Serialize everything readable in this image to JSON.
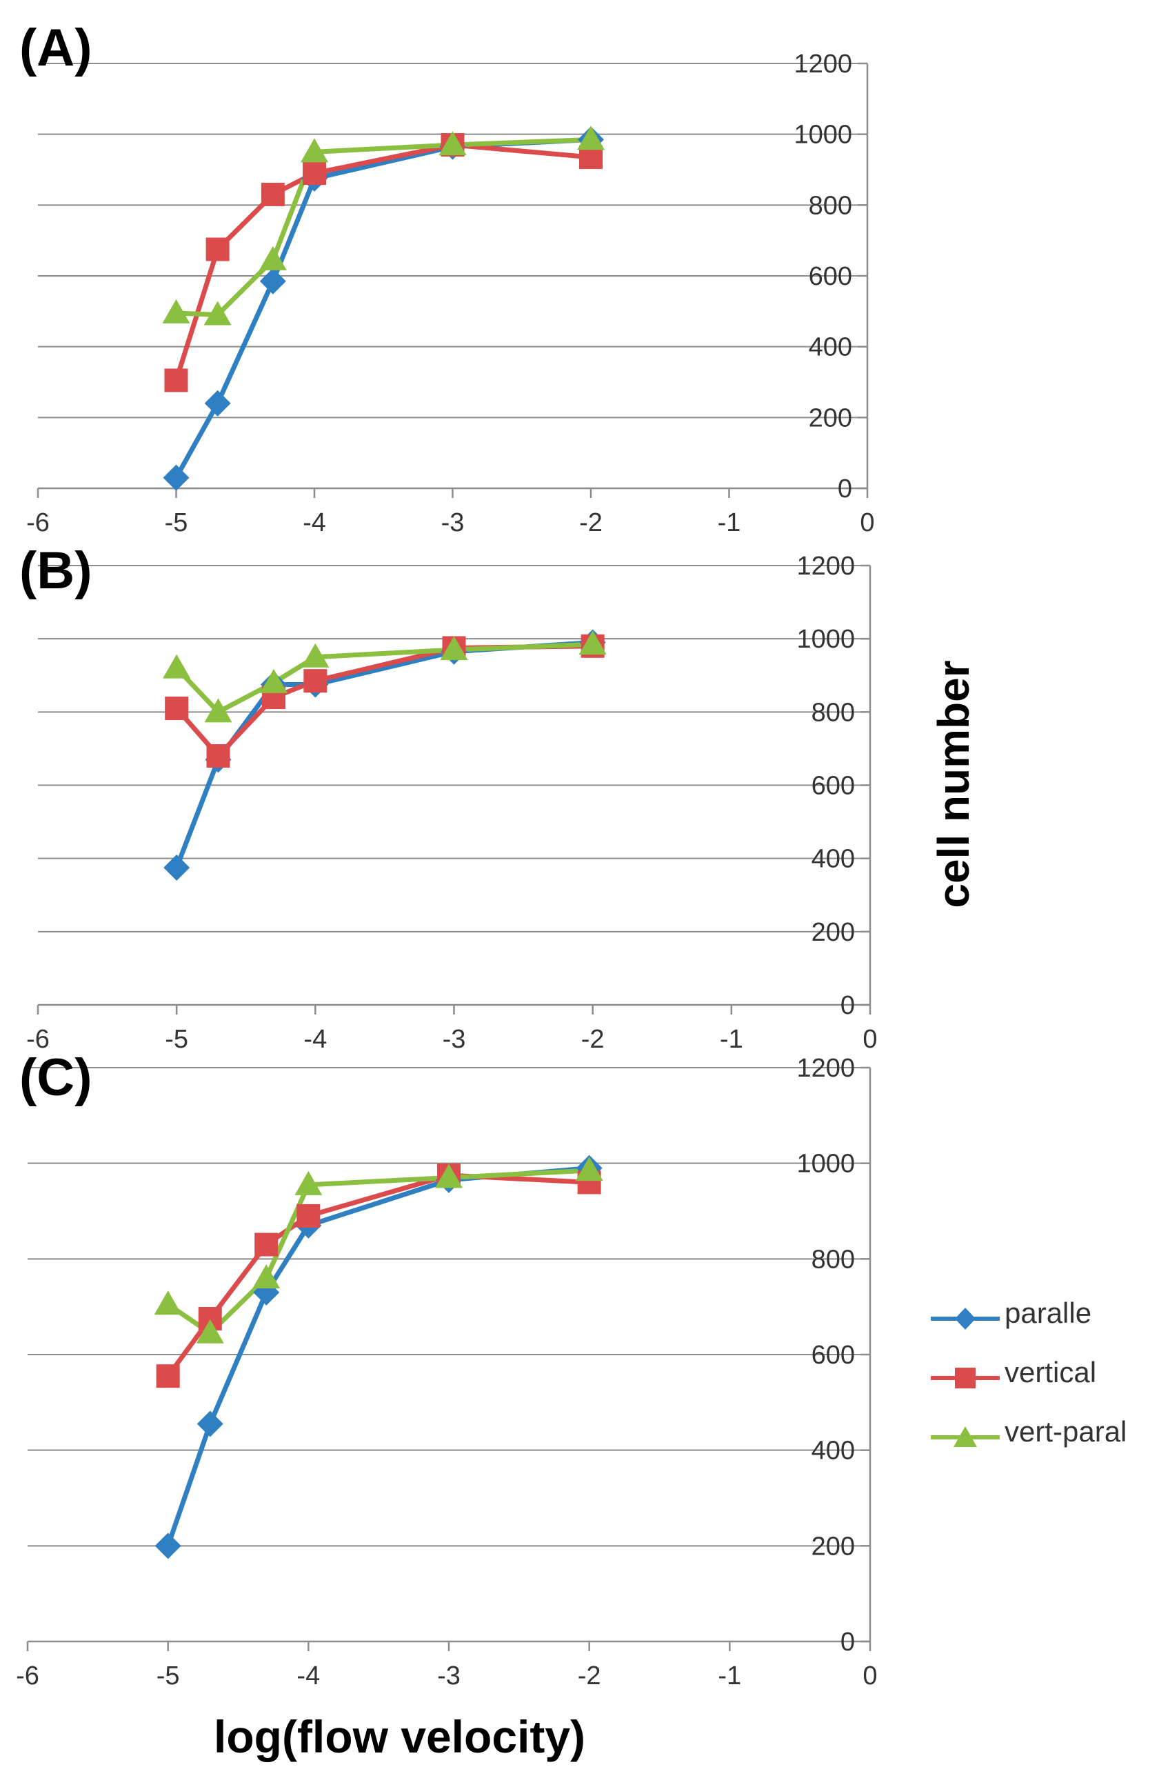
{
  "chart_data": [
    {
      "type": "line",
      "panel_label": "(A)",
      "x": [
        -5,
        -4.7,
        -4.3,
        -4,
        -3,
        -2
      ],
      "xlim": [
        -6,
        0
      ],
      "ylim": [
        0,
        1200
      ],
      "x_ticks": [
        "-6",
        "-5",
        "-4",
        "-3",
        "-2",
        "-1",
        "0"
      ],
      "y_ticks": [
        "0",
        "200",
        "400",
        "600",
        "800",
        "1000",
        "1200"
      ],
      "grid": true,
      "series": [
        {
          "name": "paralle",
          "values": [
            30,
            240,
            585,
            875,
            965,
            985
          ]
        },
        {
          "name": "vertical",
          "values": [
            305,
            675,
            830,
            890,
            970,
            935
          ]
        },
        {
          "name": "vert-paral",
          "values": [
            495,
            490,
            645,
            950,
            970,
            985
          ]
        }
      ]
    },
    {
      "type": "line",
      "panel_label": "(B)",
      "x": [
        -5,
        -4.7,
        -4.3,
        -4,
        -3,
        -2
      ],
      "xlim": [
        -6,
        0
      ],
      "ylim": [
        0,
        1200
      ],
      "x_ticks": [
        "-6",
        "-5",
        "-4",
        "-3",
        "-2",
        "-1",
        "0"
      ],
      "y_ticks": [
        "0",
        "200",
        "400",
        "600",
        "800",
        "1000",
        "1200"
      ],
      "grid": true,
      "series": [
        {
          "name": "paralle",
          "values": [
            375,
            670,
            875,
            875,
            965,
            990
          ]
        },
        {
          "name": "vertical",
          "values": [
            810,
            680,
            840,
            885,
            975,
            980
          ]
        },
        {
          "name": "vert-paral",
          "values": [
            920,
            800,
            880,
            950,
            970,
            985
          ]
        }
      ]
    },
    {
      "type": "line",
      "panel_label": "(C)",
      "x": [
        -5,
        -4.7,
        -4.3,
        -4,
        -3,
        -2
      ],
      "xlim": [
        -6,
        0
      ],
      "ylim": [
        0,
        1200
      ],
      "x_ticks": [
        "-6",
        "-5",
        "-4",
        "-3",
        "-2",
        "-1",
        "0"
      ],
      "y_ticks": [
        "0",
        "200",
        "400",
        "600",
        "800",
        "1000",
        "1200"
      ],
      "grid": true,
      "series": [
        {
          "name": "paralle",
          "values": [
            200,
            455,
            730,
            870,
            965,
            990
          ]
        },
        {
          "name": "vertical",
          "values": [
            555,
            675,
            830,
            890,
            975,
            960
          ]
        },
        {
          "name": "vert-paral",
          "values": [
            705,
            645,
            760,
            955,
            970,
            985
          ]
        }
      ]
    }
  ],
  "ylabel": "cell number",
  "xlabel": "log(flow velocity)",
  "legend": {
    "placement": "right",
    "entries": [
      {
        "name": "paralle",
        "marker": "diamond"
      },
      {
        "name": "vertical",
        "marker": "square"
      },
      {
        "name": "vert-paral",
        "marker": "triangle"
      }
    ]
  },
  "colors": {
    "paralle": "#2f7fc3",
    "vertical": "#dc4b4b",
    "vert-paral": "#8bbf3f",
    "grid": "#8c8c8c",
    "axis": "#8c8c8c",
    "tick_text": "#333333"
  }
}
